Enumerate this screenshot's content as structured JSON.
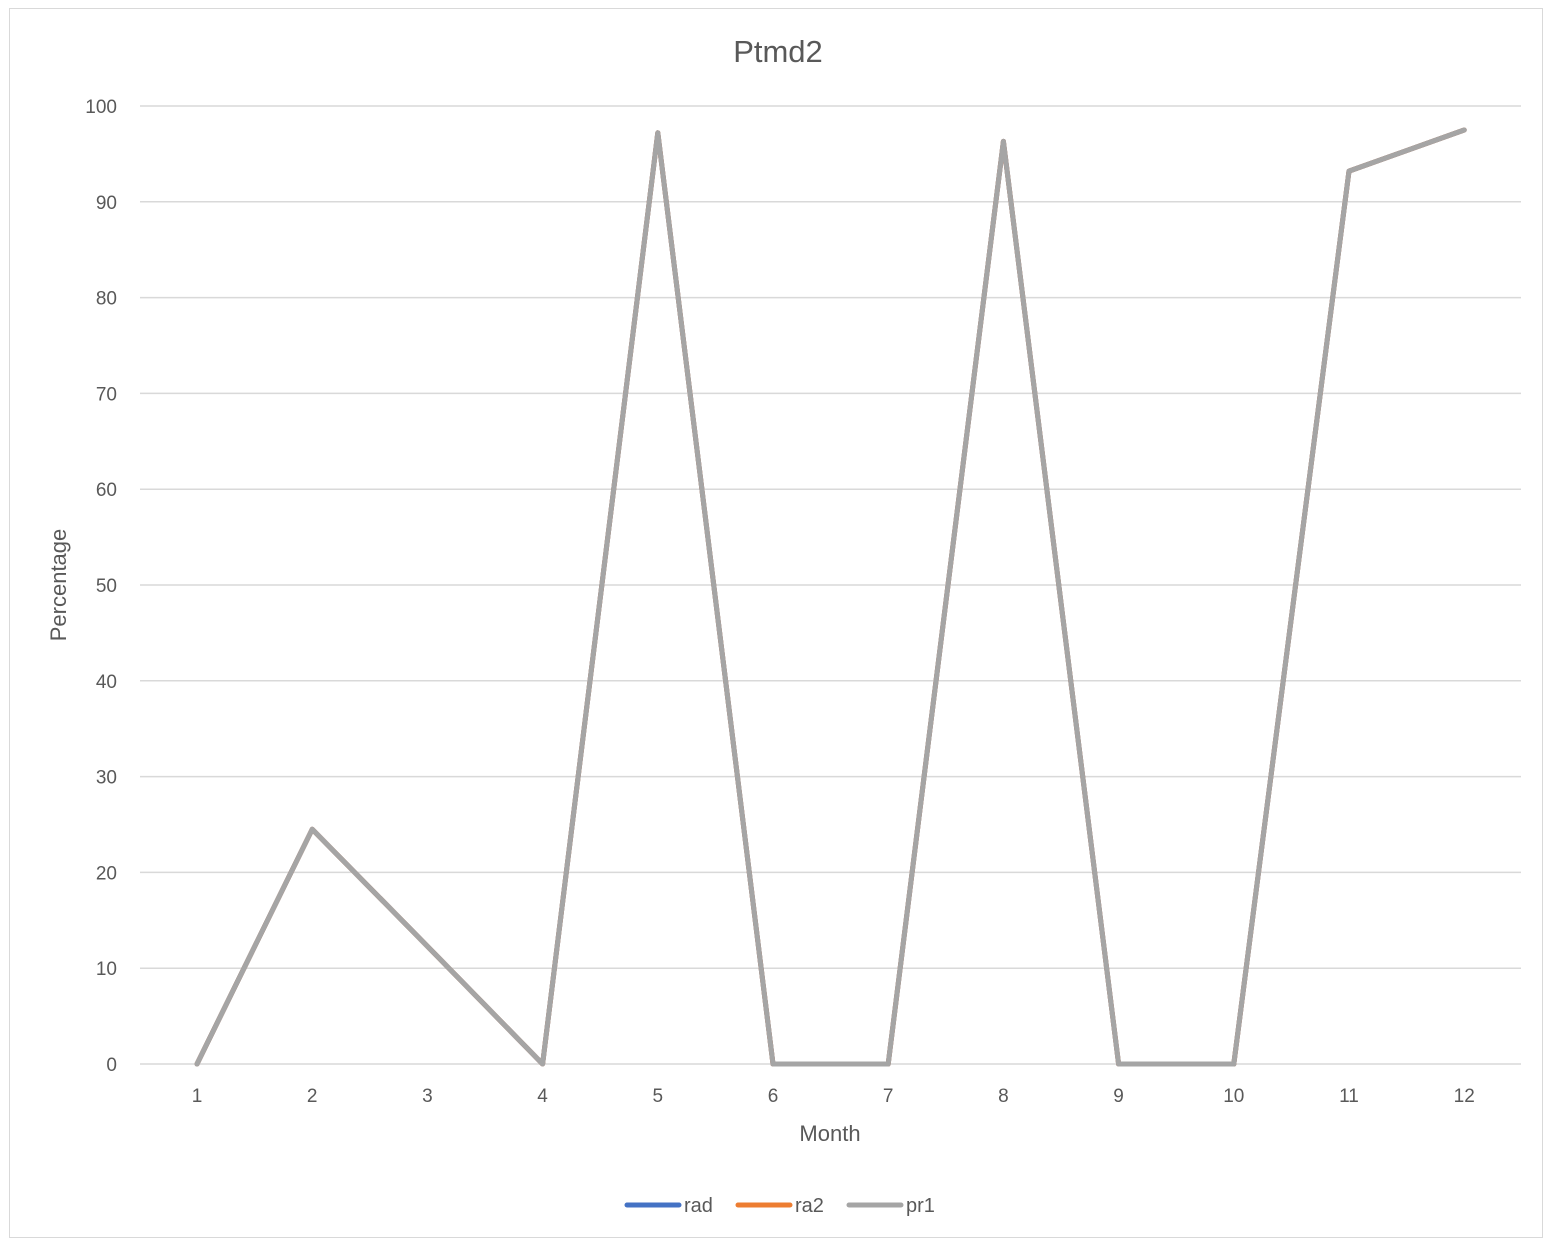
{
  "chart_data": {
    "type": "line",
    "title": "Ptmd2",
    "xlabel": "Month",
    "ylabel": "Percentage",
    "categories": [
      "1",
      "2",
      "3",
      "4",
      "5",
      "6",
      "7",
      "8",
      "9",
      "10",
      "11",
      "12"
    ],
    "ylim": [
      0,
      100
    ],
    "yticks": [
      0,
      10,
      20,
      30,
      40,
      50,
      60,
      70,
      80,
      90,
      100
    ],
    "grid": true,
    "legend_position": "bottom",
    "series": [
      {
        "name": "rad",
        "color": "#4472c4",
        "values": [
          0,
          24.5,
          12.3,
          0,
          97.2,
          0,
          0,
          96.3,
          0,
          0,
          93.2,
          97.5
        ]
      },
      {
        "name": "ra2",
        "color": "#ed7d31",
        "values": [
          0,
          24.5,
          12.3,
          0,
          97.2,
          0,
          0,
          96.3,
          0,
          0,
          93.2,
          97.5
        ]
      },
      {
        "name": "pr1",
        "color": "#a5a5a5",
        "values": [
          0,
          24.5,
          12.3,
          0,
          97.2,
          0,
          0,
          96.3,
          0,
          0,
          93.2,
          97.5
        ]
      }
    ]
  }
}
